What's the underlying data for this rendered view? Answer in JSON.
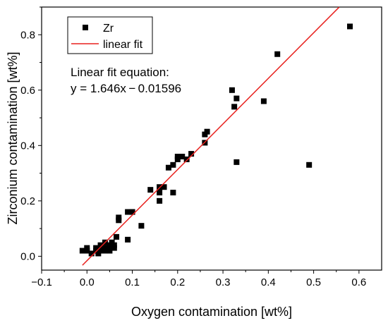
{
  "chart_data": {
    "type": "scatter",
    "title": "",
    "xlabel": "Oxygen contamination [wt%]",
    "ylabel": "Zirconium contamination [wt%]",
    "xlim": [
      -0.1,
      0.65
    ],
    "ylim": [
      -0.05,
      0.9
    ],
    "xticks": [
      -0.1,
      0.0,
      0.1,
      0.2,
      0.3,
      0.4,
      0.5,
      0.6
    ],
    "yticks": [
      0.0,
      0.2,
      0.4,
      0.6,
      0.8
    ],
    "xtick_labels": [
      "−0.1",
      "0.0",
      "0.1",
      "0.2",
      "0.3",
      "0.4",
      "0.5",
      "0.6"
    ],
    "ytick_labels": [
      "0.0",
      "0.2",
      "0.4",
      "0.6",
      "0.8"
    ],
    "grid": false,
    "legend_position": "top-left",
    "series": [
      {
        "name": "Zr",
        "marker": "square",
        "color": "#000000",
        "x": [
          -0.01,
          0.0,
          0.0,
          0.01,
          0.02,
          0.02,
          0.025,
          0.03,
          0.03,
          0.035,
          0.04,
          0.04,
          0.045,
          0.05,
          0.05,
          0.055,
          0.06,
          0.06,
          0.065,
          0.07,
          0.07,
          0.09,
          0.09,
          0.1,
          0.1,
          0.12,
          0.14,
          0.16,
          0.16,
          0.16,
          0.17,
          0.18,
          0.19,
          0.19,
          0.2,
          0.2,
          0.21,
          0.22,
          0.23,
          0.26,
          0.26,
          0.265,
          0.32,
          0.325,
          0.33,
          0.33,
          0.39,
          0.42,
          0.49,
          0.58
        ],
        "y": [
          0.02,
          0.02,
          0.03,
          0.01,
          0.02,
          0.03,
          0.01,
          0.02,
          0.04,
          0.03,
          0.05,
          0.02,
          0.03,
          0.04,
          0.02,
          0.05,
          0.03,
          0.04,
          0.07,
          0.13,
          0.14,
          0.06,
          0.16,
          0.16,
          0.16,
          0.11,
          0.24,
          0.2,
          0.23,
          0.25,
          0.25,
          0.32,
          0.33,
          0.23,
          0.35,
          0.36,
          0.36,
          0.35,
          0.37,
          0.41,
          0.44,
          0.45,
          0.6,
          0.54,
          0.57,
          0.34,
          0.56,
          0.73,
          0.33,
          0.83
        ]
      },
      {
        "name": "linear fit",
        "type": "line",
        "color": "#e8211e",
        "slope": 1.646,
        "intercept": -0.01596,
        "x_range": [
          -0.01,
          0.5564
        ]
      }
    ],
    "annotations": [
      "Linear fit equation:",
      "y = 1.646x − 0.01596"
    ]
  }
}
